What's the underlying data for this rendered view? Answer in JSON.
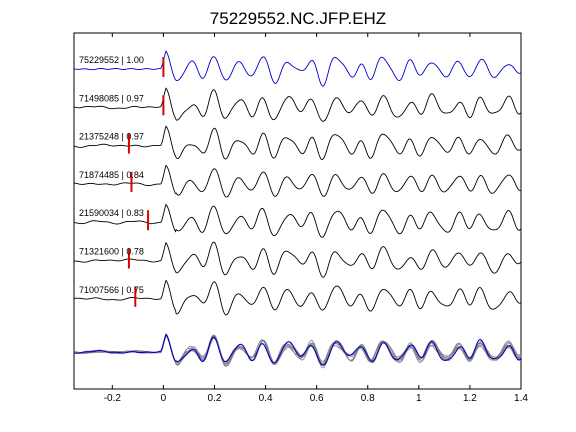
{
  "chart_data": {
    "type": "line",
    "title": "75229552.NC.JFP.EHZ",
    "xlabel": "",
    "ylabel": "",
    "xlim": [
      -0.35,
      1.4
    ],
    "x_ticks": [
      -0.2,
      0,
      0.2,
      0.4,
      0.6,
      0.8,
      1,
      1.2,
      1.4
    ],
    "x_tick_labels": [
      "-0.2",
      "0",
      "0.2",
      "0.4",
      "0.6",
      "0.8",
      "1",
      "1.2",
      "1.4"
    ],
    "grid": false,
    "colors": {
      "reference": "#0000cc",
      "trace": "#000000",
      "stack": "#808080",
      "pick": "#dd0000"
    },
    "series": [
      {
        "label": "75229552 | 1.00",
        "pick_time": 0.0,
        "color": "reference",
        "seed": 1
      },
      {
        "label": "71498085 | 0.97",
        "pick_time": 0.0,
        "color": "trace",
        "seed": 2
      },
      {
        "label": "21375248 | 0.97",
        "pick_time": -0.135,
        "color": "trace",
        "seed": 3
      },
      {
        "label": "71874485 | 0.84",
        "pick_time": -0.125,
        "color": "trace",
        "seed": 4
      },
      {
        "label": "21590034 | 0.83",
        "pick_time": -0.06,
        "color": "trace",
        "seed": 5
      },
      {
        "label": "71321600 | 0.78",
        "pick_time": -0.135,
        "color": "trace",
        "seed": 6
      },
      {
        "label": "71007566 | 0.75",
        "pick_time": -0.11,
        "color": "trace",
        "seed": 7
      }
    ],
    "stack_note": ""
  }
}
